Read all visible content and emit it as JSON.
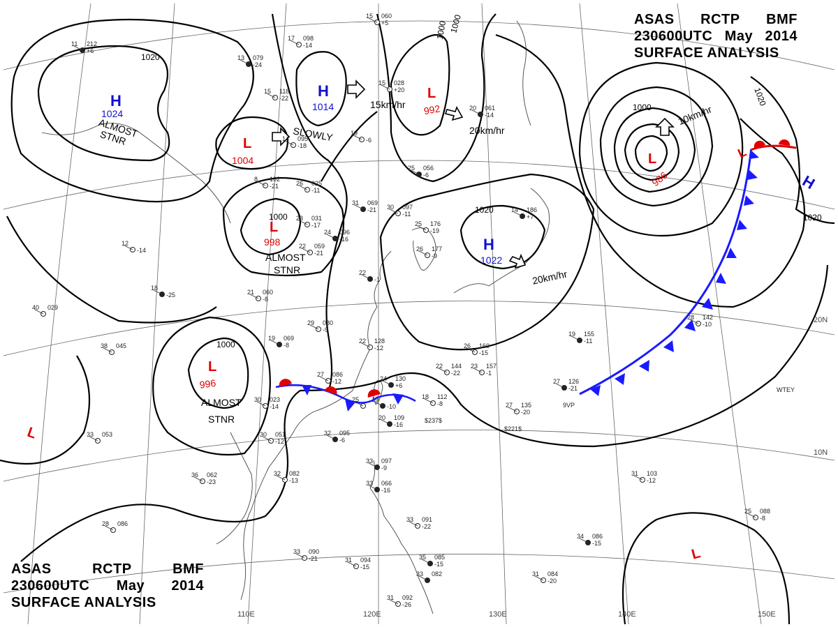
{
  "header_top": {
    "line1": [
      "ASAS",
      "RCTP",
      "BMF"
    ],
    "line2": [
      "230600UTC",
      "May",
      "2014"
    ],
    "line3": "SURFACE ANALYSIS"
  },
  "header_bottom": {
    "line1": [
      "ASAS",
      "RCTP",
      "BMF"
    ],
    "line2": [
      "230600UTC",
      "May",
      "2014"
    ],
    "line3": "SURFACE ANALYSIS"
  },
  "colors": {
    "high": "#1010d0",
    "low": "#e00000",
    "pressure_value_low": "#e00000",
    "pressure_value_high": "#1010d0",
    "cold_front": "#1a1aff",
    "warm_front": "#e00000",
    "isobar": "#000000",
    "grid": "#555555",
    "coast": "#333333"
  },
  "longitude_labels": [
    "110E",
    "120E",
    "130E",
    "140E",
    "150E"
  ],
  "latitude_labels": [
    "20N",
    "10N"
  ],
  "pressure_systems": [
    {
      "type": "H",
      "value": "1024",
      "note": "ALMOST STNR"
    },
    {
      "type": "H",
      "value": "1014",
      "movement": "15km/hr"
    },
    {
      "type": "L",
      "value": "992",
      "movement": "20km/hr"
    },
    {
      "type": "L",
      "value": "1004",
      "movement": "SLOWLY"
    },
    {
      "type": "L",
      "value": "998",
      "note": "ALMOST STNR"
    },
    {
      "type": "H",
      "value": "1022",
      "movement": "20km/hr"
    },
    {
      "type": "L",
      "value": "986",
      "movement": "10km/hr"
    },
    {
      "type": "L",
      "value": "996",
      "note": "ALMOST STNR"
    },
    {
      "type": "H",
      "value": ""
    },
    {
      "type": "L",
      "value": ""
    },
    {
      "type": "L",
      "value": ""
    },
    {
      "type": "L",
      "value": ""
    }
  ],
  "isobar_labels": [
    "1020",
    "1000",
    "1000",
    "1020",
    "1020",
    "1000",
    "1020",
    "1000",
    "1000"
  ],
  "station_plots": [
    {
      "t": "11",
      "p": "212",
      "d": "+6"
    },
    {
      "t": "17",
      "p": "098",
      "d": "-14"
    },
    {
      "t": "15",
      "p": "060",
      "d": "+5"
    },
    {
      "t": "13",
      "p": "079",
      "d": "-24"
    },
    {
      "t": "15",
      "p": "118",
      "d": "-22"
    },
    {
      "t": "15",
      "p": "028",
      "d": "+20"
    },
    {
      "t": "20",
      "p": "061",
      "d": "-14"
    },
    {
      "t": "14",
      "p": "095",
      "d": "-18"
    },
    {
      "t": "19",
      "p": "",
      "d": "-6"
    },
    {
      "t": "25",
      "p": "056",
      "d": "-6"
    },
    {
      "t": "8",
      "p": "102",
      "d": "-21"
    },
    {
      "t": "26",
      "p": "025",
      "d": "-11"
    },
    {
      "t": "31",
      "p": "069",
      "d": "-21"
    },
    {
      "t": "30",
      "p": "097",
      "d": "-11"
    },
    {
      "t": "23",
      "p": "031",
      "d": "-17"
    },
    {
      "t": "24",
      "p": "096",
      "d": "-16"
    },
    {
      "t": "25",
      "p": "176",
      "d": "-19"
    },
    {
      "t": "26",
      "p": "177",
      "d": "-9"
    },
    {
      "t": "14",
      "p": "186",
      "d": "+7"
    },
    {
      "t": "12",
      "p": "",
      "d": "-14"
    },
    {
      "t": "22",
      "p": "059",
      "d": "-21"
    },
    {
      "t": "18",
      "p": "",
      "d": "-25"
    },
    {
      "t": "40",
      "p": "029",
      "d": ""
    },
    {
      "t": "21",
      "p": "060",
      "d": "-8"
    },
    {
      "t": "22",
      "p": "",
      "d": "-1"
    },
    {
      "t": "29",
      "p": "080",
      "d": "-9"
    },
    {
      "t": "38",
      "p": "045",
      "d": ""
    },
    {
      "t": "19",
      "p": "069",
      "d": "-8"
    },
    {
      "t": "22",
      "p": "128",
      "d": "-12"
    },
    {
      "t": "26",
      "p": "160",
      "d": "-15"
    },
    {
      "t": "19",
      "p": "155",
      "d": "-11"
    },
    {
      "t": "28",
      "p": "142",
      "d": "-10"
    },
    {
      "t": "27",
      "p": "086",
      "d": "-12"
    },
    {
      "t": "24",
      "p": "130",
      "d": "+6"
    },
    {
      "t": "22",
      "p": "144",
      "d": "-22"
    },
    {
      "t": "23",
      "p": "157",
      "d": "-1"
    },
    {
      "t": "27",
      "p": "126",
      "d": "-21"
    },
    {
      "t": "30",
      "p": "023",
      "d": "-14"
    },
    {
      "t": "25",
      "p": "",
      "d": ""
    },
    {
      "t": "19",
      "p": "",
      "d": "-10"
    },
    {
      "t": "18",
      "p": "112",
      "d": "-8"
    },
    {
      "t": "27",
      "p": "135",
      "d": "-20"
    },
    {
      "t": "20",
      "p": "109",
      "d": "-16"
    },
    {
      "t": "33",
      "p": "053",
      "d": ""
    },
    {
      "t": "30",
      "p": "051",
      "d": "-12"
    },
    {
      "t": "32",
      "p": "095",
      "d": "-6"
    },
    {
      "t": "32",
      "p": "082",
      "d": "-13"
    },
    {
      "t": "36",
      "p": "062",
      "d": "-23"
    },
    {
      "t": "33",
      "p": "097",
      "d": "-9"
    },
    {
      "t": "31",
      "p": "103",
      "d": "-12"
    },
    {
      "t": "28",
      "p": "086",
      "d": ""
    },
    {
      "t": "33",
      "p": "066",
      "d": "-16"
    },
    {
      "t": "25",
      "p": "088",
      "d": "-8"
    },
    {
      "t": "33",
      "p": "091",
      "d": "-22"
    },
    {
      "t": "34",
      "p": "086",
      "d": "-15"
    },
    {
      "t": "33",
      "p": "090",
      "d": "-21"
    },
    {
      "t": "31",
      "p": "094",
      "d": "-15"
    },
    {
      "t": "35",
      "p": "085",
      "d": "-15"
    },
    {
      "t": "31",
      "p": "084",
      "d": "-20"
    },
    {
      "t": "31",
      "p": "092",
      "d": "-26"
    },
    {
      "t": "33",
      "p": "082",
      "d": ""
    }
  ],
  "other_labels": [
    "9VP",
    "WTEY",
    "$237$",
    "$221$"
  ]
}
